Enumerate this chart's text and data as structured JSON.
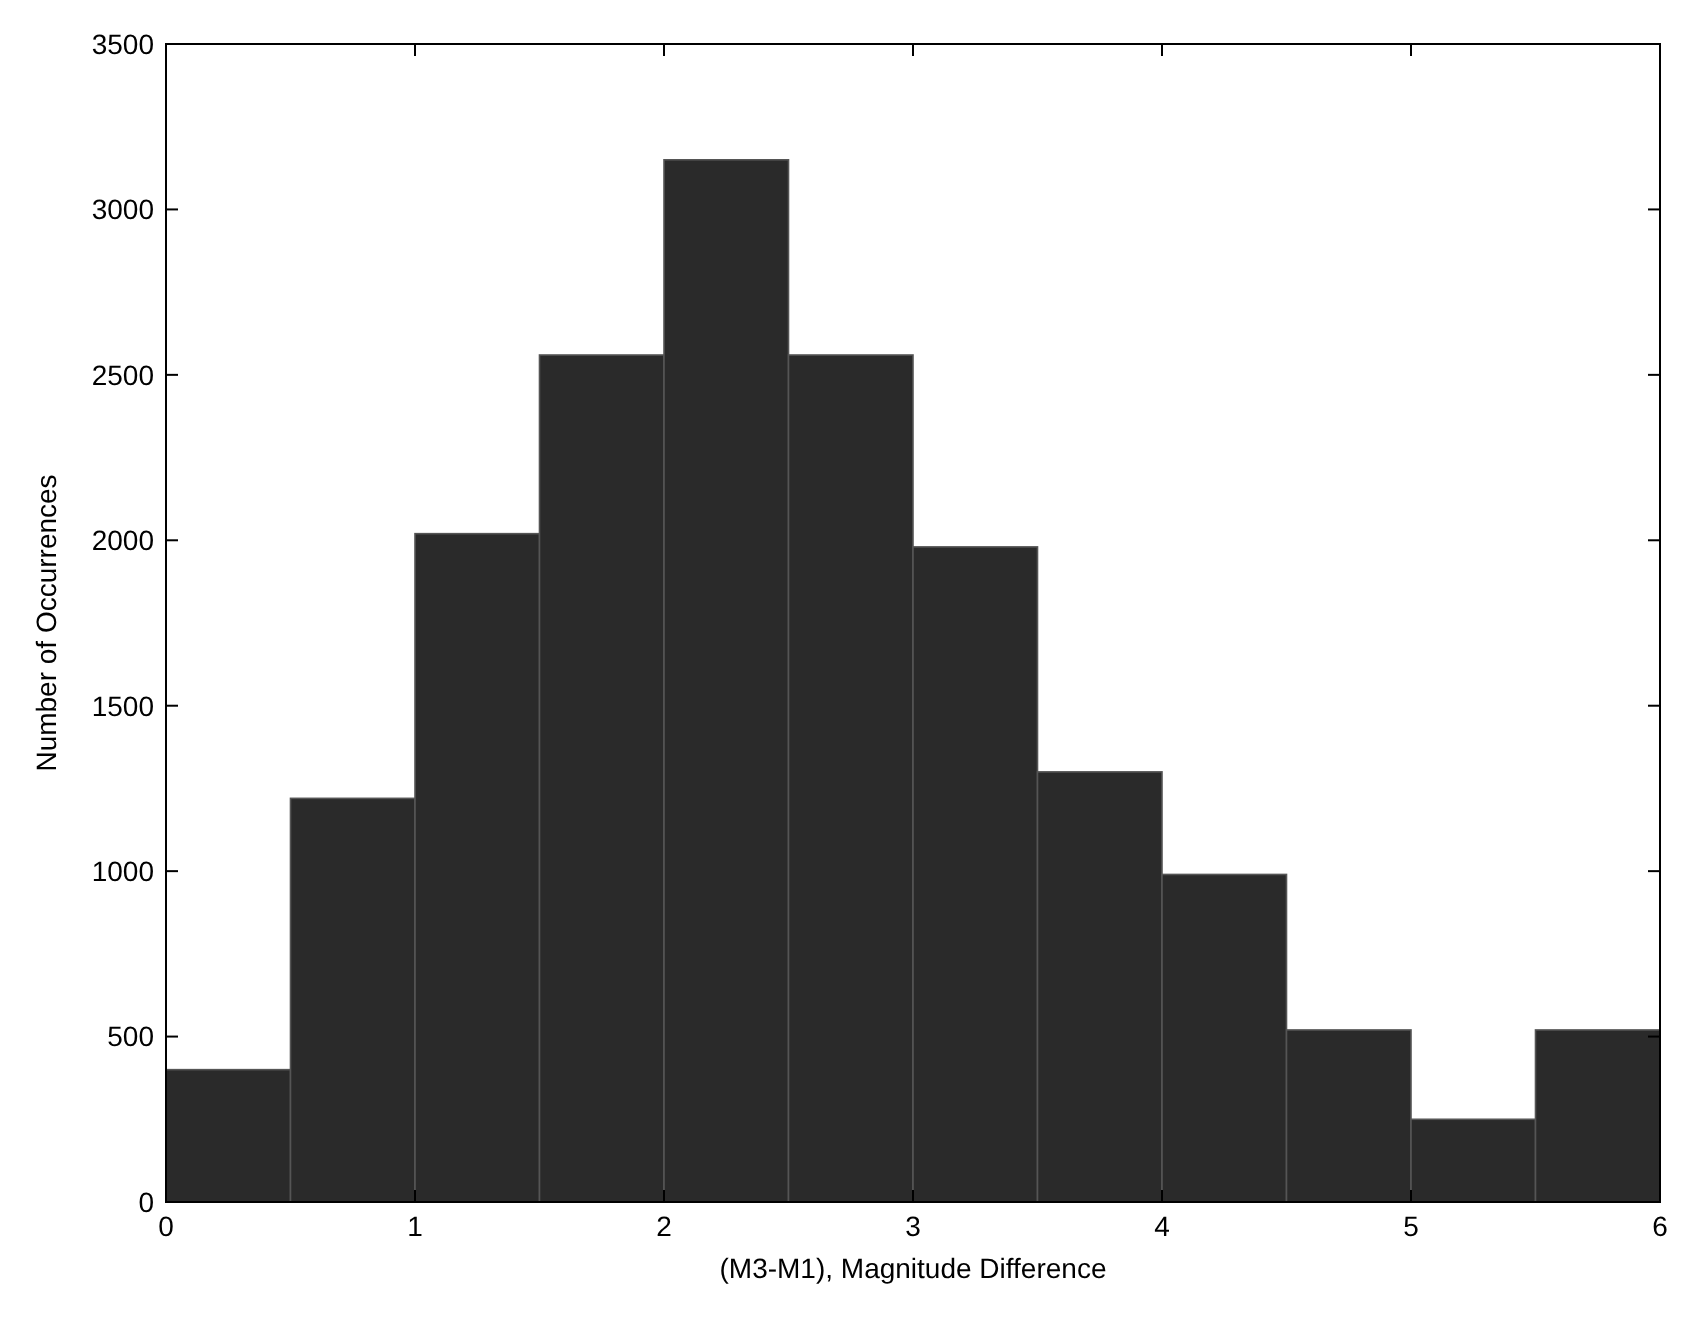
{
  "chart_data": {
    "type": "histogram",
    "xlabel": "(M3-M1), Magnitude Difference",
    "ylabel": "Number of Occurrences",
    "bins": [
      0,
      0.5,
      1,
      1.5,
      2,
      2.5,
      3,
      3.5,
      4,
      4.5,
      5,
      5.5,
      6
    ],
    "values": [
      400,
      1220,
      2020,
      2560,
      3150,
      2560,
      1980,
      1300,
      990,
      520,
      250,
      520
    ],
    "color": "#2a2a2a",
    "xlim": [
      0,
      6
    ],
    "xticks": [
      0,
      1,
      2,
      3,
      4,
      5,
      6
    ],
    "ylim": [
      0,
      3500
    ],
    "yticks": [
      0,
      500,
      1000,
      1500,
      2000,
      2500,
      3000,
      3500
    ],
    "grid": false
  }
}
